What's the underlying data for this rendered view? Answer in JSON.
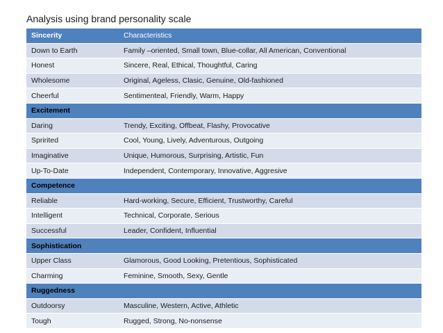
{
  "title": "Analysis using brand personality scale",
  "table": {
    "headers": [
      "Sincerity",
      "Characteristics"
    ],
    "rows": [
      {
        "type": "item",
        "trait": "Down to Earth",
        "characteristics": "Family –oriented, Small town, Blue-collar, All American, Conventional"
      },
      {
        "type": "item",
        "trait": "Honest",
        "characteristics": "Sincere, Real, Ethical, Thoughtful, Caring"
      },
      {
        "type": "item",
        "trait": "Wholesome",
        "characteristics": "Original, Ageless, Clasic, Genuine, Old-fashioned"
      },
      {
        "type": "item",
        "trait": "Cheerful",
        "characteristics": "Sentimenteal, Friendly, Warm, Happy"
      },
      {
        "type": "group",
        "trait": "Excitement",
        "characteristics": ""
      },
      {
        "type": "item",
        "trait": "Daring",
        "characteristics": "Trendy, Exciting, Offbeat, Flashy, Provocative"
      },
      {
        "type": "item",
        "trait": "Spririted",
        "characteristics": "Cool, Young, Lively, Adventurous, Outgoing"
      },
      {
        "type": "item",
        "trait": "Imaginative",
        "characteristics": "Unique, Humorous, Surprising, Artistic, Fun"
      },
      {
        "type": "item",
        "trait": "Up-To-Date",
        "characteristics": "Independent, Contemporary, Innovative, Aggresive"
      },
      {
        "type": "group",
        "trait": "Competence",
        "characteristics": ""
      },
      {
        "type": "item",
        "trait": "Reliable",
        "characteristics": "Hard-working, Secure, Efficient, Trustworthy, Careful"
      },
      {
        "type": "item",
        "trait": "Intelligent",
        "characteristics": "Technical, Corporate, Serious"
      },
      {
        "type": "item",
        "trait": "Successful",
        "characteristics": "Leader, Confident, Influential"
      },
      {
        "type": "group",
        "trait": "Sophistication",
        "characteristics": ""
      },
      {
        "type": "item",
        "trait": "Upper Class",
        "characteristics": "Glamorous, Good Looking, Pretentious, Sophisticated"
      },
      {
        "type": "item",
        "trait": "Charming",
        "characteristics": "Feminine, Smooth, Sexy, Gentle"
      },
      {
        "type": "group",
        "trait": "Ruggedness",
        "characteristics": ""
      },
      {
        "type": "item",
        "trait": "Outdoorsy",
        "characteristics": "Masculine, Western, Active, Athletic"
      },
      {
        "type": "item",
        "trait": "Tough",
        "characteristics": "Rugged, Strong, No-nonsense"
      }
    ]
  }
}
